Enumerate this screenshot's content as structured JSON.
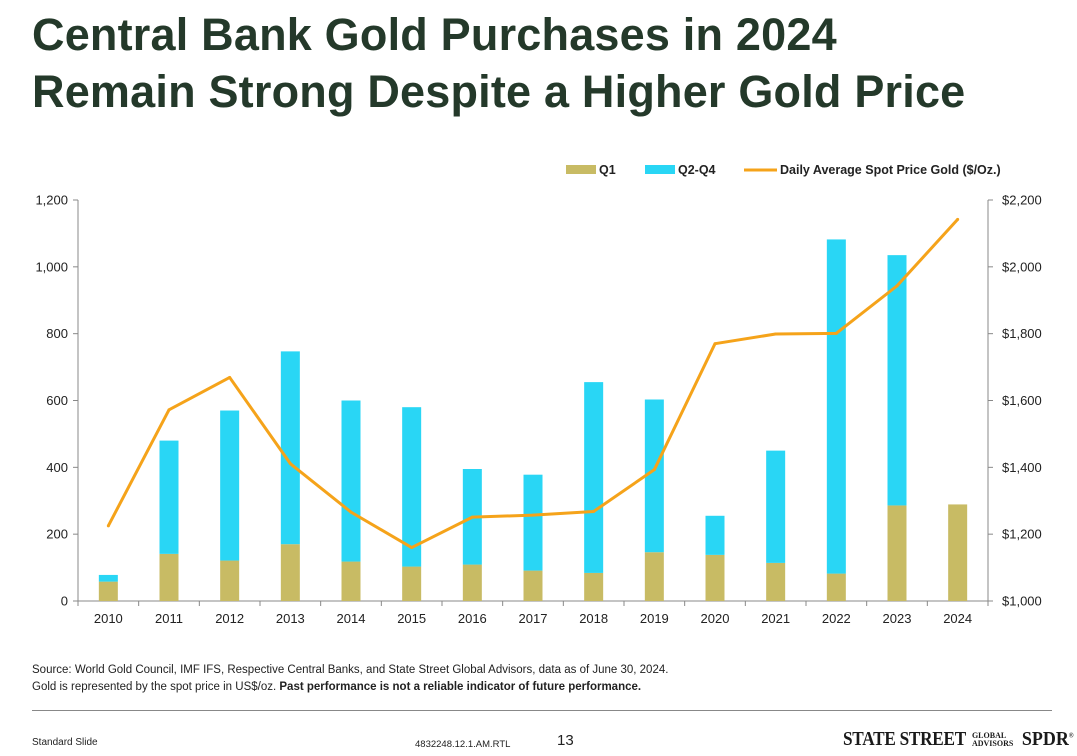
{
  "header": {
    "title_line1": "Central Bank Gold Purchases in 2024",
    "title_line2": "Remain Strong Despite a Higher Gold Price"
  },
  "chart_data": {
    "type": "bar",
    "subtype": "stacked bar + line (secondary axis)",
    "categories": [
      "2010",
      "2011",
      "2012",
      "2013",
      "2014",
      "2015",
      "2016",
      "2017",
      "2018",
      "2019",
      "2020",
      "2021",
      "2022",
      "2023",
      "2024"
    ],
    "series": [
      {
        "name": "Q1",
        "type": "bar",
        "color": "#c8bb64",
        "values": [
          58,
          141,
          121,
          170,
          118,
          103,
          109,
          91,
          84,
          146,
          138,
          114,
          82,
          286,
          289
        ]
      },
      {
        "name": "Q2-Q4",
        "type": "bar",
        "color": "#29d6f5",
        "values": [
          20,
          339,
          449,
          577,
          482,
          477,
          286,
          287,
          571,
          457,
          117,
          336,
          1000,
          749,
          0
        ]
      },
      {
        "name": "Daily Average Spot Price Gold ($/Oz.)",
        "type": "line",
        "axis": "right",
        "color": "#f5a31a",
        "values": [
          1225,
          1572,
          1669,
          1411,
          1266,
          1160,
          1251,
          1257,
          1268,
          1393,
          1770,
          1799,
          1801,
          1943,
          2142
        ]
      }
    ],
    "y_left": {
      "min": 0,
      "max": 1200,
      "ticks": [
        "0",
        "200",
        "400",
        "600",
        "800",
        "1,000",
        "1,200"
      ]
    },
    "y_right": {
      "min": 1000,
      "max": 2200,
      "ticks": [
        "$1,000",
        "$1,200",
        "$1,400",
        "$1,600",
        "$1,800",
        "$2,000",
        "$2,200"
      ]
    },
    "legend_position": "top-right",
    "grid": false
  },
  "source": {
    "line1": "Source: World Gold Council, IMF IFS, Respective Central Banks, and State Street Global Advisors, data as of June 30, 2024.",
    "line2_plain": "Gold is represented by the spot price in US$/oz. ",
    "line2_bold": "Past performance is not a reliable indicator of future performance."
  },
  "footer": {
    "left": "Standard Slide",
    "code": "4832248.12.1.AM.RTL",
    "page": "13",
    "logo_main": "STATE STREET",
    "logo_sub1": "GLOBAL",
    "logo_sub2": "ADVISORS",
    "logo_brand": "SPDR",
    "logo_mark": "®"
  }
}
